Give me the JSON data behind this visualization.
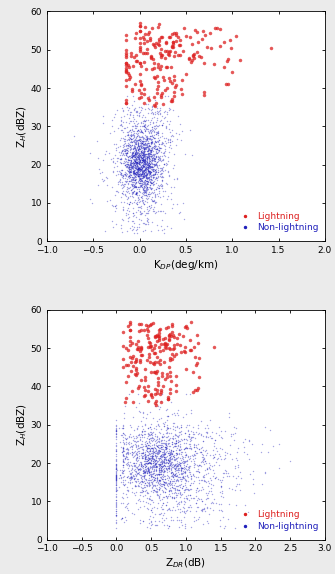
{
  "top_plot": {
    "xlabel": "K$_{DP}$(deg/km)",
    "ylabel": "Z$_{H}$(dBZ)",
    "xlim": [
      -1.0,
      2.0
    ],
    "ylim": [
      0,
      60
    ],
    "xticks": [
      -1.0,
      -0.5,
      0.0,
      0.5,
      1.0,
      1.5,
      2.0
    ],
    "yticks": [
      0,
      10,
      20,
      30,
      40,
      50,
      60
    ],
    "lightning_color": "#dd2020",
    "nonlightning_color": "#2020bb",
    "lightning_label": "Lightning",
    "nonlightning_label": "Non-lightning"
  },
  "bottom_plot": {
    "xlabel": "Z$_{DR}$(dB)",
    "ylabel": "Z$_{H}$(dBZ)",
    "xlim": [
      -1.0,
      3.0
    ],
    "ylim": [
      0,
      60
    ],
    "xticks": [
      -1.0,
      -0.5,
      0.0,
      0.5,
      1.0,
      1.5,
      2.0,
      2.5,
      3.0
    ],
    "yticks": [
      0,
      10,
      20,
      30,
      40,
      50,
      60
    ],
    "lightning_color": "#dd2020",
    "nonlightning_color": "#2020bb",
    "lightning_label": "Lightning",
    "nonlightning_label": "Non-lightning"
  },
  "figure": {
    "bg_color": "#ebebeb",
    "plot_bg_color": "#ffffff",
    "marker_size_lightning": 2.5,
    "marker_size_nonlightning": 1.0,
    "marker_alpha_lightning": 0.75,
    "marker_alpha_nonlightning": 0.4,
    "tick_label_size": 6.5,
    "axis_label_size": 7.5,
    "legend_fontsize": 6.5
  }
}
